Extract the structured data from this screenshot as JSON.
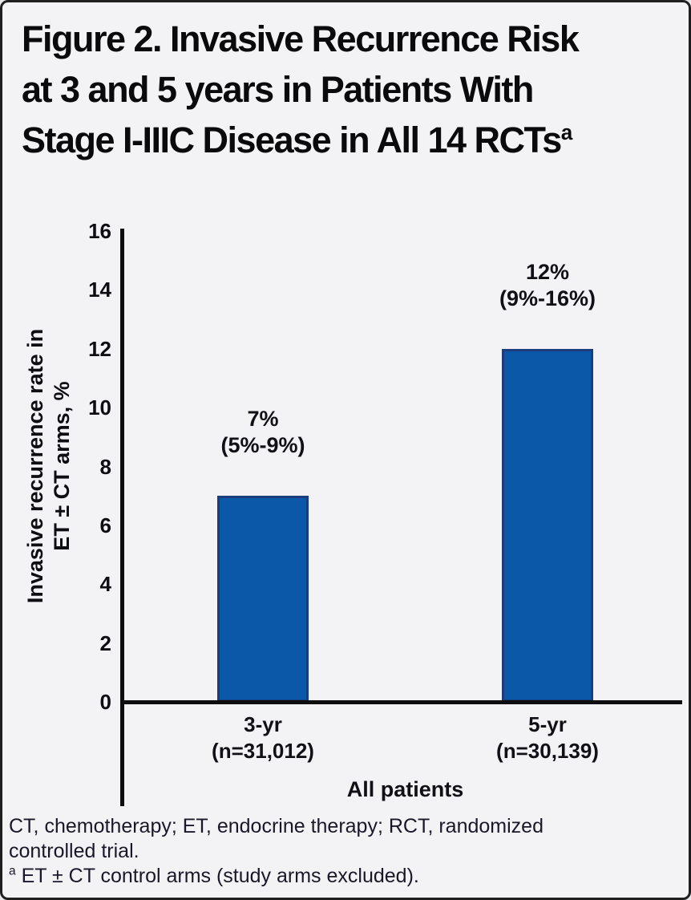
{
  "figure": {
    "title_lines": [
      "Figure 2. Invasive Recurrence Risk",
      "at 3 and 5 years in Patients With",
      "Stage I-IIIC Disease in All 14 RCTs"
    ],
    "title_superscript": "a"
  },
  "chart_data": {
    "type": "bar",
    "title": "Figure 2. Invasive Recurrence Risk at 3 and 5 years in Patients With Stage I-IIIC Disease in All 14 RCTs",
    "categories": [
      "3-yr",
      "5-yr"
    ],
    "category_sublabels": [
      "(n=31,012)",
      "(n=30,139)"
    ],
    "values": [
      7,
      12
    ],
    "value_labels": [
      "7%",
      "12%"
    ],
    "ci_labels": [
      "(5%-9%)",
      "(9%-16%)"
    ],
    "group_label": "All patients",
    "ylabel_lines": [
      "Invasive recurrence rate in",
      "ET ± CT arms, %"
    ],
    "xlabel": "All patients",
    "ylim": [
      0,
      16
    ],
    "yticks": [
      16,
      14,
      12,
      10,
      8,
      6,
      4,
      2,
      0
    ],
    "grid": false,
    "legend": "none",
    "bar_fill": "#0b57a8",
    "bar_border": "#1b3d7c"
  },
  "footnotes": {
    "abbrev_lines": [
      "CT, chemotherapy; ET, endocrine therapy; RCT, randomized",
      "controlled trial."
    ],
    "note_superscript": "a",
    "note_text": " ET ± CT control arms (study arms excluded)."
  }
}
